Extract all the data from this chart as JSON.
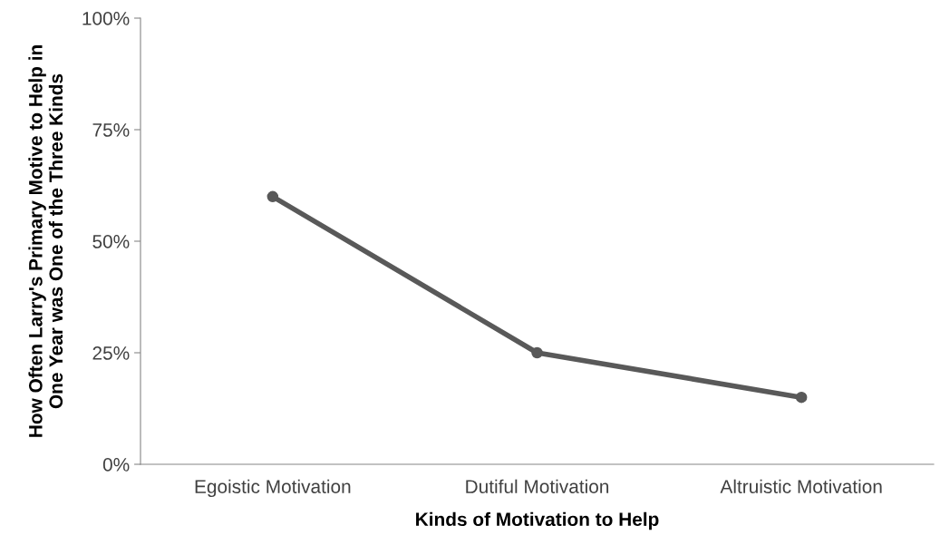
{
  "chart_data": {
    "type": "line",
    "xlabel": "Kinds of Motivation to Help",
    "ylabel": "How Often Larry's Primary Motive to Help in\nOne Year was One of the Three Kinds",
    "categories": [
      "Egoistic Motivation",
      "Dutiful Motivation",
      "Altruistic Motivation"
    ],
    "series": [
      {
        "color": "#595959",
        "values": [
          60,
          25,
          15
        ]
      }
    ],
    "ylim": [
      0,
      100
    ],
    "yticks": [
      {
        "value": 0,
        "label": "0%"
      },
      {
        "value": 25,
        "label": "25%"
      },
      {
        "value": 50,
        "label": "50%"
      },
      {
        "value": 75,
        "label": "75%"
      },
      {
        "value": 100,
        "label": "100%"
      }
    ],
    "marker": "circle",
    "line_style": "solid",
    "grid": false,
    "legend": false
  }
}
